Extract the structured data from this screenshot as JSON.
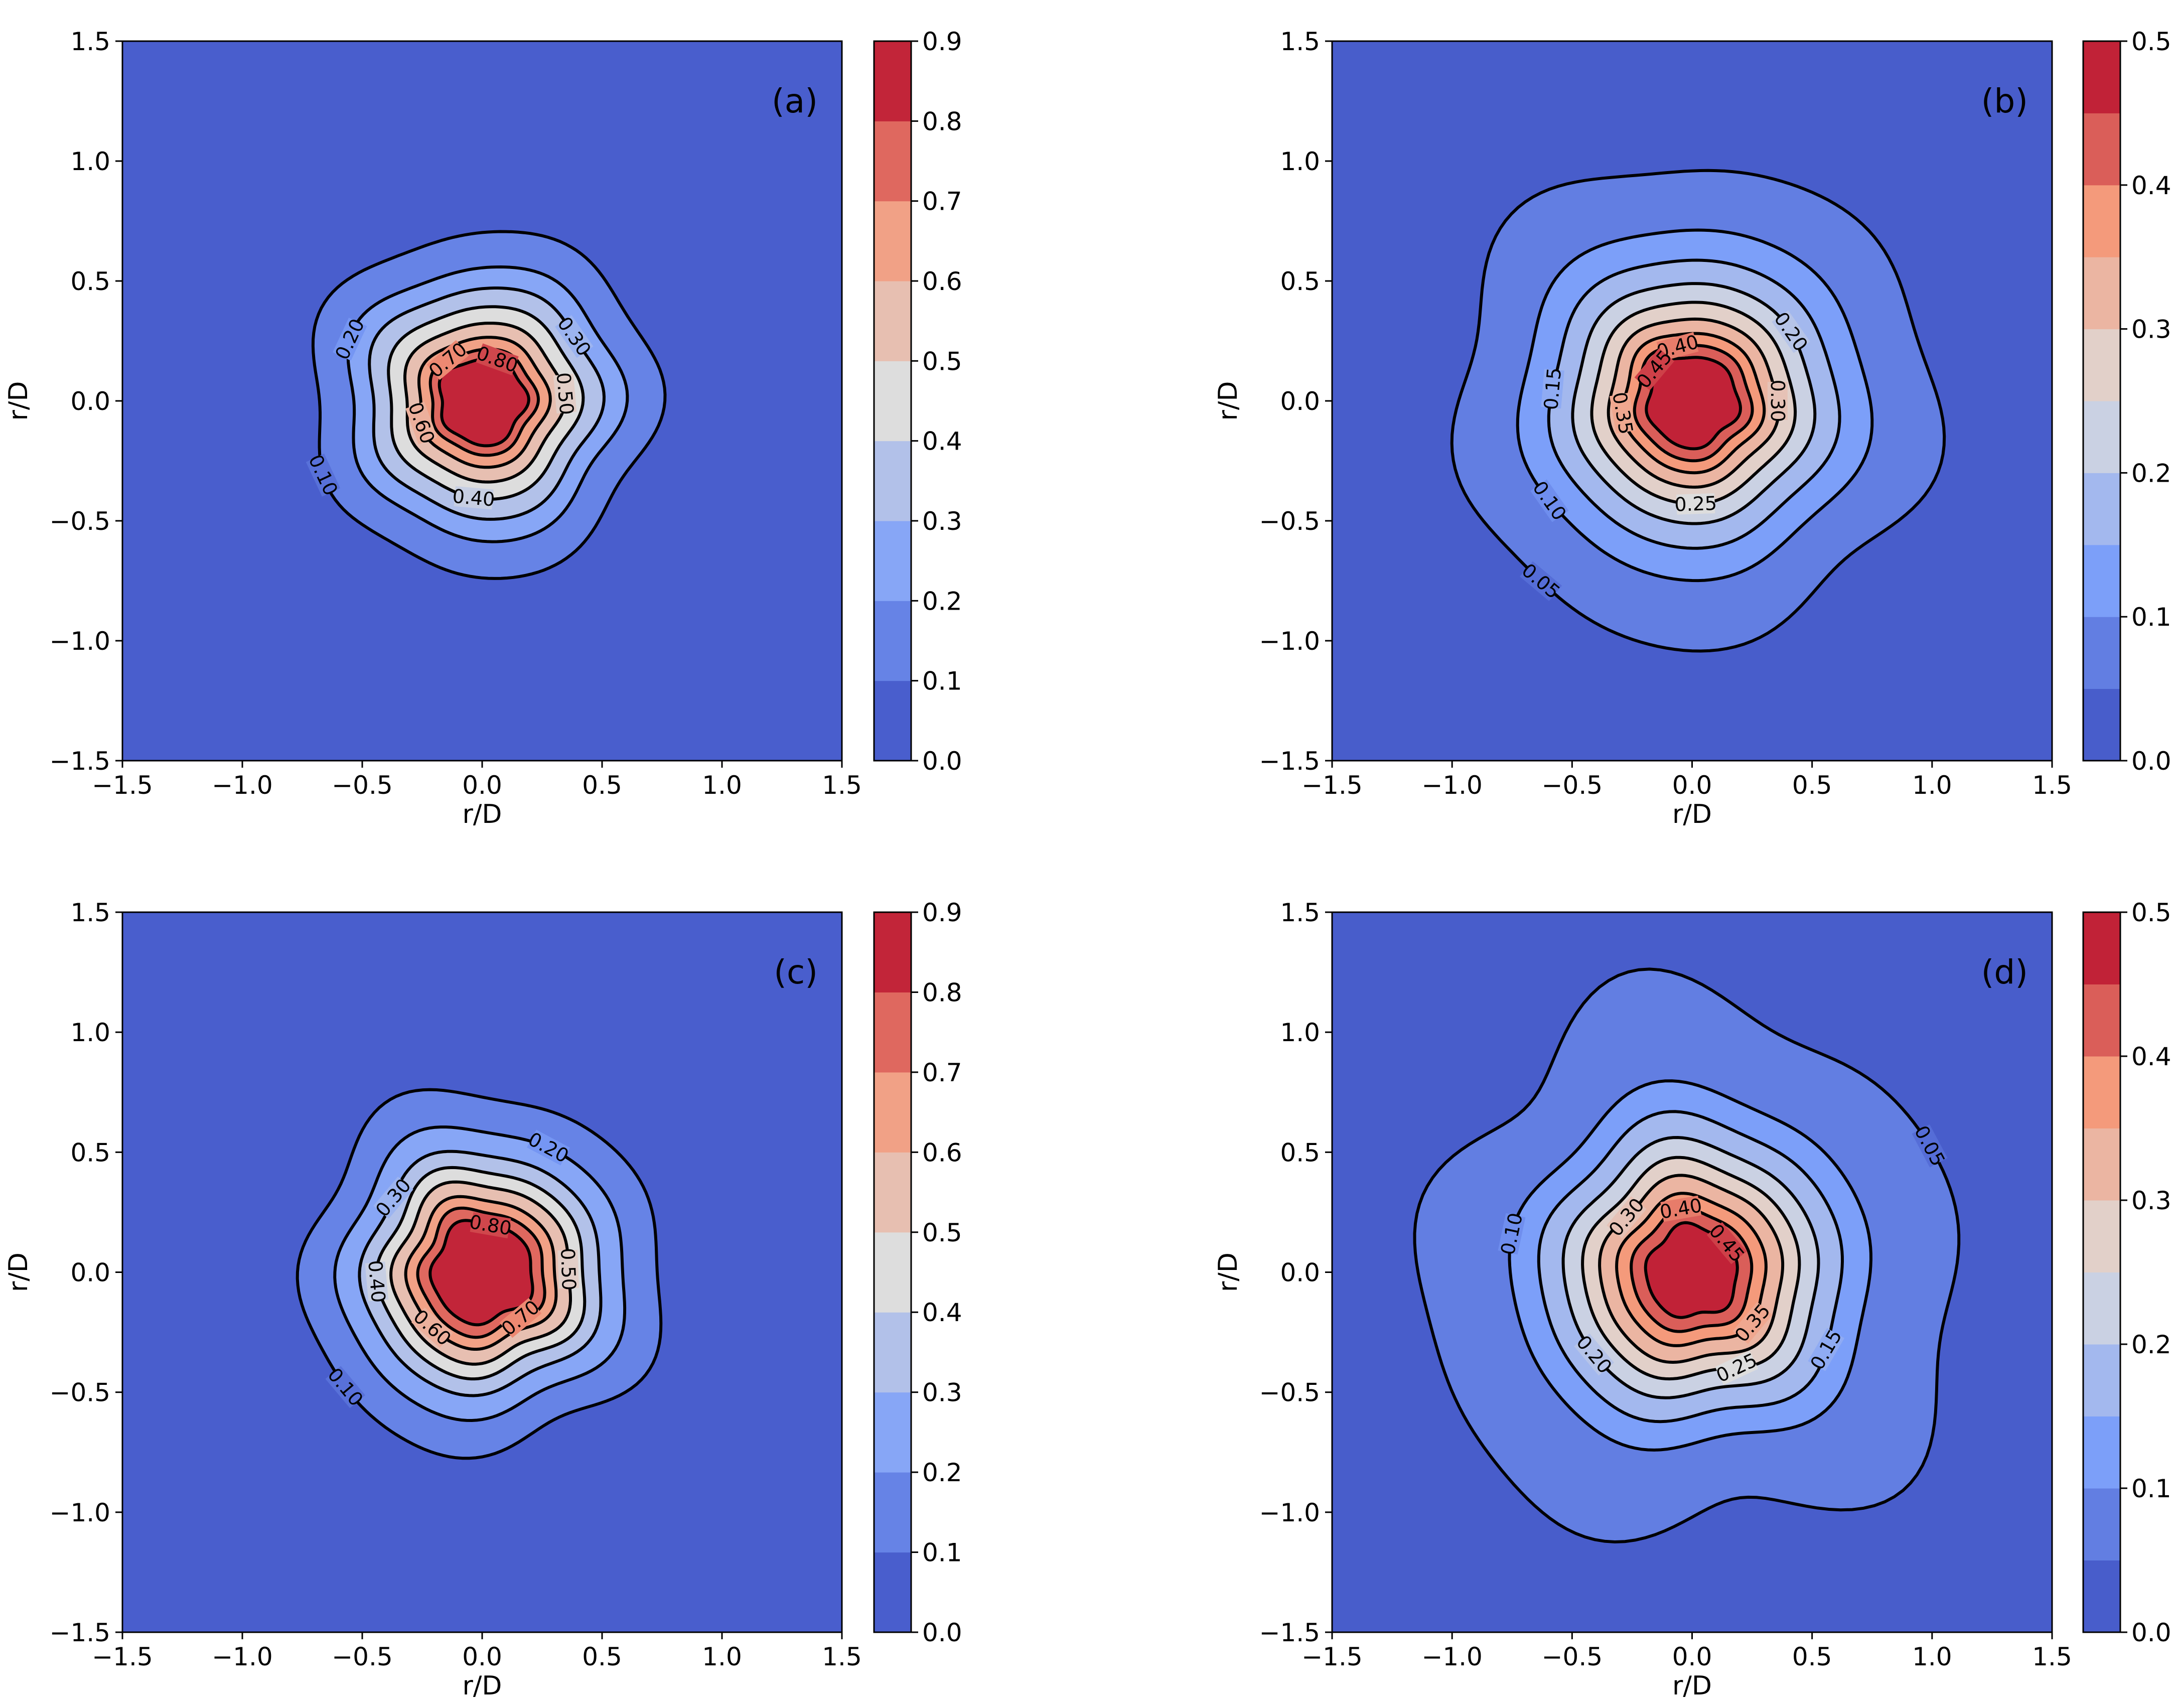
{
  "figure": {
    "x_axis_label": "r/D",
    "y_axis_label": "r/D"
  },
  "chart_data": [
    {
      "type": "contour",
      "panel_label": "(a)",
      "xlabel": "r/D",
      "ylabel": "r/D",
      "xlim": [
        -1.5,
        1.5
      ],
      "ylim": [
        -1.5,
        1.5
      ],
      "x_ticks": [
        "−1.5",
        "−1.0",
        "−0.5",
        "0.0",
        "0.5",
        "1.0",
        "1.5"
      ],
      "y_ticks": [
        "−1.5",
        "−1.0",
        "−0.5",
        "0.0",
        "0.5",
        "1.0",
        "1.5"
      ],
      "center": [
        0.0,
        0.0
      ],
      "peak_value": 0.9,
      "colorbar_range": [
        0.0,
        0.9
      ],
      "colorbar_ticks": [
        "0.0",
        "0.1",
        "0.2",
        "0.3",
        "0.4",
        "0.5",
        "0.6",
        "0.7",
        "0.8",
        "0.9"
      ],
      "levels": [
        0.1,
        0.2,
        0.3,
        0.4,
        0.5,
        0.6,
        0.7,
        0.8
      ],
      "contour_radius_r_over_D": [
        0.72,
        0.57,
        0.48,
        0.4,
        0.33,
        0.27,
        0.22,
        0.18
      ],
      "contour_wobble": [
        0.03,
        0.025,
        0.02,
        0.015,
        0.012,
        0.01,
        0.01,
        0.01
      ],
      "contour_labels": [
        {
          "text": "0.10",
          "level": 0.1,
          "angle_deg": 205
        },
        {
          "text": "0.20",
          "level": 0.2,
          "angle_deg": 155
        },
        {
          "text": "0.30",
          "level": 0.3,
          "angle_deg": 35
        },
        {
          "text": "0.40",
          "level": 0.4,
          "angle_deg": 265
        },
        {
          "text": "0.50",
          "level": 0.5,
          "angle_deg": 5
        },
        {
          "text": "0.60",
          "level": 0.6,
          "angle_deg": 200
        },
        {
          "text": "0.70",
          "level": 0.7,
          "angle_deg": 130
        },
        {
          "text": "0.80",
          "level": 0.8,
          "angle_deg": 70
        }
      ]
    },
    {
      "type": "contour",
      "panel_label": "(b)",
      "xlabel": "r/D",
      "ylabel": "r/D",
      "xlim": [
        -1.5,
        1.5
      ],
      "ylim": [
        -1.5,
        1.5
      ],
      "x_ticks": [
        "−1.5",
        "−1.0",
        "−0.5",
        "0.0",
        "0.5",
        "1.0",
        "1.5"
      ],
      "y_ticks": [
        "−1.5",
        "−1.0",
        "−0.5",
        "0.0",
        "0.5",
        "1.0",
        "1.5"
      ],
      "center": [
        0.0,
        0.0
      ],
      "peak_value": 0.5,
      "colorbar_range": [
        0.0,
        0.5
      ],
      "colorbar_ticks": [
        "0.0",
        "0.1",
        "0.2",
        "0.3",
        "0.4",
        "0.5"
      ],
      "levels": [
        0.05,
        0.1,
        0.15,
        0.2,
        0.25,
        0.3,
        0.35,
        0.4,
        0.45
      ],
      "contour_radius_r_over_D": [
        1.0,
        0.73,
        0.6,
        0.5,
        0.42,
        0.35,
        0.29,
        0.24,
        0.19
      ],
      "contour_wobble": [
        0.045,
        0.02,
        0.015,
        0.012,
        0.01,
        0.01,
        0.01,
        0.01,
        0.01
      ],
      "contour_labels": [
        {
          "text": "0.05",
          "level": 0.05,
          "angle_deg": 230
        },
        {
          "text": "0.10",
          "level": 0.1,
          "angle_deg": 215
        },
        {
          "text": "0.15",
          "level": 0.15,
          "angle_deg": 175
        },
        {
          "text": "0.20",
          "level": 0.2,
          "angle_deg": 35
        },
        {
          "text": "0.25",
          "level": 0.25,
          "angle_deg": 272
        },
        {
          "text": "0.30",
          "level": 0.3,
          "angle_deg": 0
        },
        {
          "text": "0.35",
          "level": 0.35,
          "angle_deg": 190
        },
        {
          "text": "0.40",
          "level": 0.4,
          "angle_deg": 105
        },
        {
          "text": "0.45",
          "level": 0.45,
          "angle_deg": 140
        }
      ]
    },
    {
      "type": "contour",
      "panel_label": "(c)",
      "xlabel": "r/D",
      "ylabel": "r/D",
      "xlim": [
        -1.5,
        1.5
      ],
      "ylim": [
        -1.5,
        1.5
      ],
      "x_ticks": [
        "−1.5",
        "−1.0",
        "−0.5",
        "0.0",
        "0.5",
        "1.0",
        "1.5"
      ],
      "y_ticks": [
        "−1.5",
        "−1.0",
        "−0.5",
        "0.0",
        "0.5",
        "1.0",
        "1.5"
      ],
      "center": [
        0.0,
        0.0
      ],
      "peak_value": 0.9,
      "colorbar_range": [
        0.0,
        0.9
      ],
      "colorbar_ticks": [
        "0.0",
        "0.1",
        "0.2",
        "0.3",
        "0.4",
        "0.5",
        "0.6",
        "0.7",
        "0.8",
        "0.9"
      ],
      "levels": [
        0.1,
        0.2,
        0.3,
        0.4,
        0.5,
        0.6,
        0.7,
        0.8
      ],
      "contour_radius_r_over_D": [
        0.75,
        0.6,
        0.5,
        0.43,
        0.37,
        0.31,
        0.26,
        0.21
      ],
      "contour_wobble": [
        0.035,
        0.025,
        0.02,
        0.02,
        0.018,
        0.015,
        0.015,
        0.012
      ],
      "contour_labels": [
        {
          "text": "0.10",
          "level": 0.1,
          "angle_deg": 220
        },
        {
          "text": "0.20",
          "level": 0.2,
          "angle_deg": 62
        },
        {
          "text": "0.30",
          "level": 0.3,
          "angle_deg": 140
        },
        {
          "text": "0.40",
          "level": 0.4,
          "angle_deg": 185
        },
        {
          "text": "0.50",
          "level": 0.5,
          "angle_deg": 2
        },
        {
          "text": "0.60",
          "level": 0.6,
          "angle_deg": 228
        },
        {
          "text": "0.70",
          "level": 0.7,
          "angle_deg": 310
        },
        {
          "text": "0.80",
          "level": 0.8,
          "angle_deg": 80
        }
      ]
    },
    {
      "type": "contour",
      "panel_label": "(d)",
      "xlabel": "r/D",
      "ylabel": "r/D",
      "xlim": [
        -1.5,
        1.5
      ],
      "ylim": [
        -1.5,
        1.5
      ],
      "x_ticks": [
        "−1.5",
        "−1.0",
        "−0.5",
        "0.0",
        "0.5",
        "1.0",
        "1.5"
      ],
      "y_ticks": [
        "−1.5",
        "−1.0",
        "−0.5",
        "0.0",
        "0.5",
        "1.0",
        "1.5"
      ],
      "center": [
        0.0,
        0.0
      ],
      "peak_value": 0.5,
      "colorbar_range": [
        0.0,
        0.5
      ],
      "colorbar_ticks": [
        "0.0",
        "0.1",
        "0.2",
        "0.3",
        "0.4",
        "0.5"
      ],
      "levels": [
        0.05,
        0.1,
        0.15,
        0.2,
        0.25,
        0.3,
        0.35,
        0.4,
        0.45
      ],
      "contour_radius_r_over_D": [
        1.12,
        0.75,
        0.63,
        0.53,
        0.45,
        0.38,
        0.31,
        0.25,
        0.19
      ],
      "contour_wobble": [
        0.085,
        0.03,
        0.025,
        0.02,
        0.018,
        0.015,
        0.012,
        0.01,
        0.01
      ],
      "contour_labels": [
        {
          "text": "0.05",
          "level": 0.05,
          "angle_deg": 28
        },
        {
          "text": "0.10",
          "level": 0.1,
          "angle_deg": 168
        },
        {
          "text": "0.15",
          "level": 0.15,
          "angle_deg": 330
        },
        {
          "text": "0.20",
          "level": 0.2,
          "angle_deg": 220
        },
        {
          "text": "0.25",
          "level": 0.25,
          "angle_deg": 295
        },
        {
          "text": "0.30",
          "level": 0.3,
          "angle_deg": 140
        },
        {
          "text": "0.35",
          "level": 0.35,
          "angle_deg": 320
        },
        {
          "text": "0.40",
          "level": 0.4,
          "angle_deg": 100
        },
        {
          "text": "0.45",
          "level": 0.45,
          "angle_deg": 40
        }
      ]
    }
  ]
}
